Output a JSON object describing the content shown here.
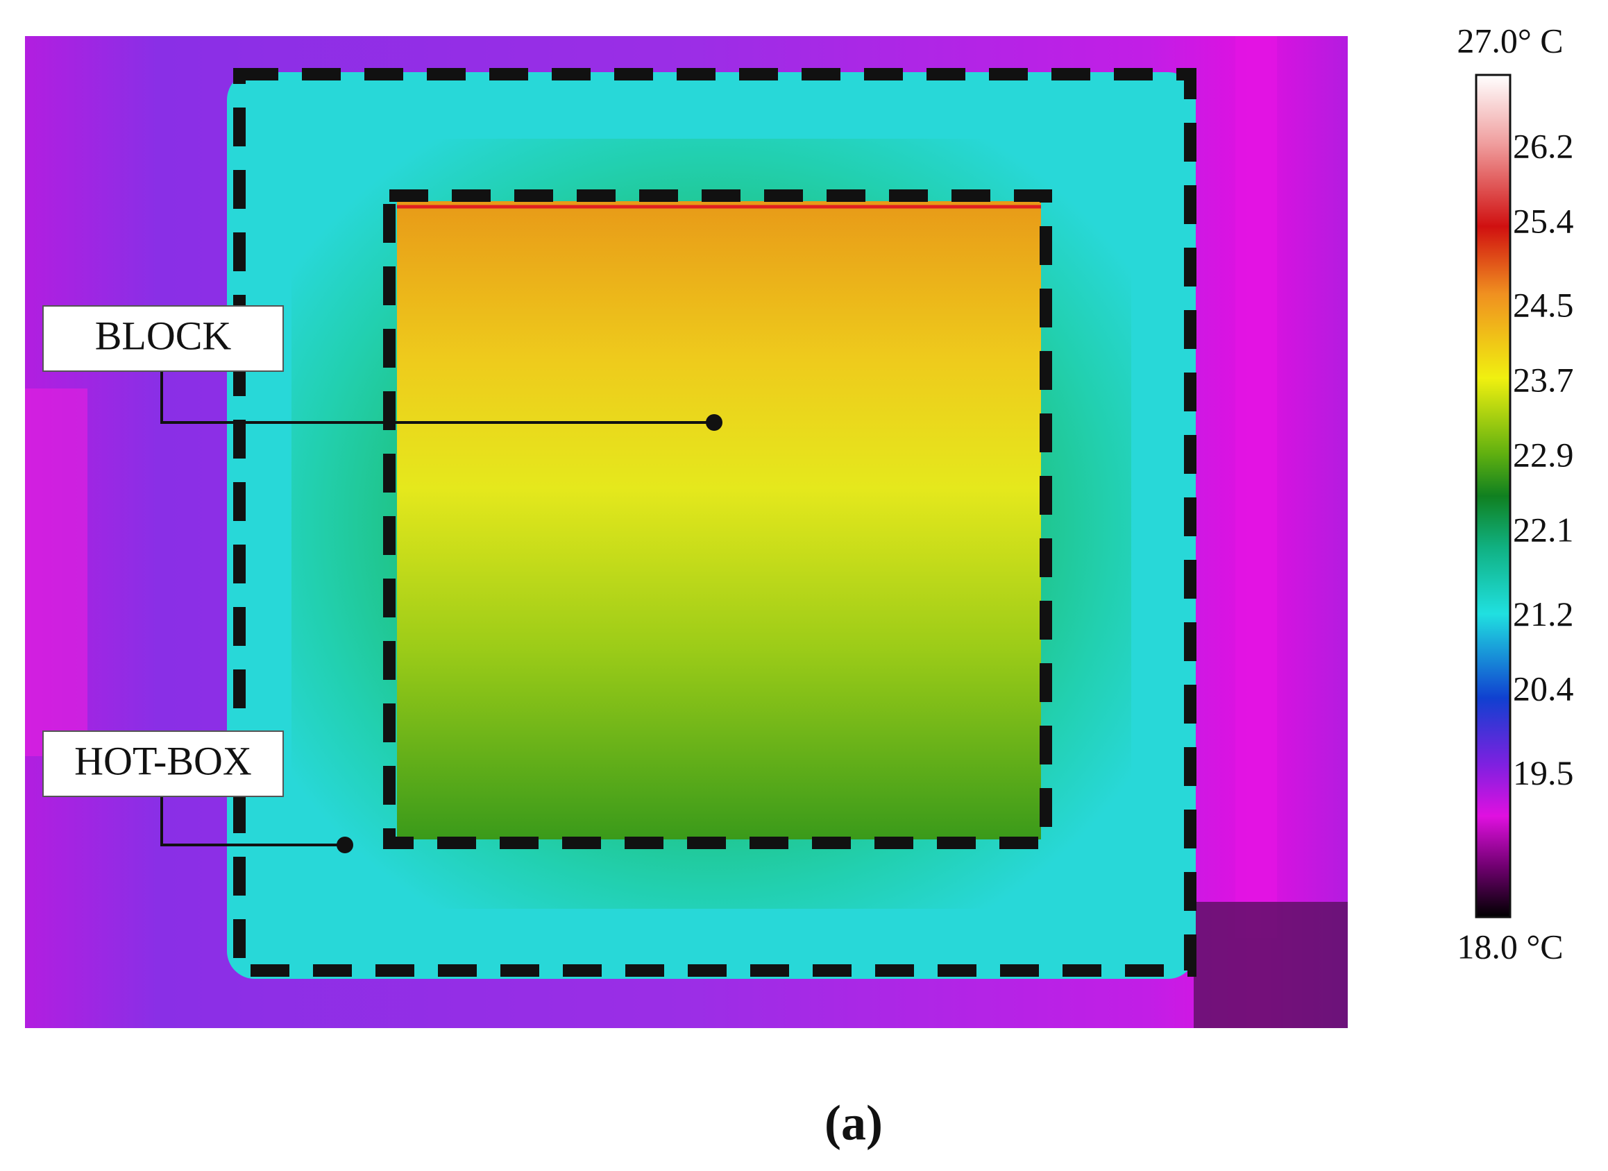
{
  "labels": {
    "block": "BLOCK",
    "hot_box": "HOT-BOX"
  },
  "colorbar": {
    "max": {
      "value": 27,
      "label": "27.0° C"
    },
    "min": {
      "value": 18,
      "label": "18.0 °C"
    },
    "ticks": [
      26.2,
      25.4,
      24.5,
      23.7,
      22.9,
      22.1,
      21.2,
      20.4,
      19.5
    ]
  },
  "caption": "(a)"
}
